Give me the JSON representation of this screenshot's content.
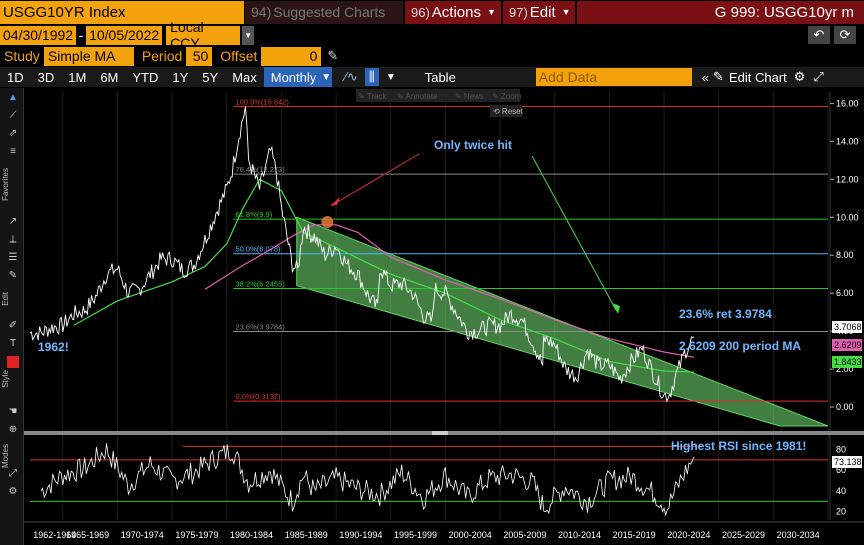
{
  "header": {
    "ticker": "USGG10YR Index",
    "suggested_num": "94)",
    "suggested_label": "Suggested Charts",
    "actions_num": "96)",
    "actions_label": "Actions",
    "edit_num": "97)",
    "edit_label": "Edit",
    "title": "G 999: USGG10yr m"
  },
  "range": {
    "start": "04/30/1992",
    "end": "10/05/2022",
    "currency": "Local CCY"
  },
  "study": {
    "study_label": "Study",
    "study_value": "Simple MA",
    "period_label": "Period",
    "period_value": "50",
    "offset_label": "Offset",
    "offset_value": "0"
  },
  "toolbar": {
    "tabs": [
      "1D",
      "3D",
      "1M",
      "6M",
      "YTD",
      "1Y",
      "5Y",
      "Max"
    ],
    "frequency": "Monthly",
    "table_label": "Table",
    "add_data_placeholder": "Add Data",
    "edit_chart_label": "Edit Chart"
  },
  "chart_controls": {
    "track": "Track",
    "annotate": "Annotate",
    "news": "News",
    "zoom": "Zoom",
    "reset": "Reset"
  },
  "left_labels": {
    "favorites": "Favorites",
    "edit": "Edit",
    "style": "Style",
    "modes": "Modes"
  },
  "fib_levels": [
    {
      "label": "100.0%(15.842)",
      "value": 15.842,
      "color": "#e03030"
    },
    {
      "label": "76.4%(12.273)",
      "value": 12.273,
      "color": "#888888"
    },
    {
      "label": "61.8%(9.9)",
      "value": 9.9,
      "color": "#22cc22"
    },
    {
      "label": "50.0%(8.078)",
      "value": 8.078,
      "color": "#44bbff"
    },
    {
      "label": "38.2%(6.2455)",
      "value": 6.2455,
      "color": "#22cc22"
    },
    {
      "label": "23.6%(3.9784)",
      "value": 3.9784,
      "color": "#888888"
    },
    {
      "label": "0.0%(0.3137)",
      "value": 0.3137,
      "color": "#e03030"
    }
  ],
  "annotations": {
    "only_twice": "Only twice hit",
    "year_1962": "1962!",
    "ret_236": "23.6% ret 3.9784",
    "ma_200": "2.6209 200 period MA",
    "highest_rsi": "Highest RSI since 1981!"
  },
  "value_tags": {
    "last": "3.7068",
    "ma200": "2.6209",
    "ma50": "1.8433",
    "rsi": "73.1384"
  },
  "colors": {
    "price": "#ffffff",
    "ma50": "#44dd44",
    "ma200": "#e060b0",
    "channel": "#5ad65a",
    "annotation": "#6fb8ff",
    "bbg_orange": "#f4a20b"
  },
  "chart_data": {
    "type": "line",
    "y_ticks": [
      "16.00",
      "14.00",
      "12.00",
      "10.00",
      "8.00",
      "6.00",
      "4.00",
      "2.00",
      "0.00"
    ],
    "ylim": [
      -1,
      16.6
    ],
    "rsi_ticks": [
      "80",
      "60",
      "40",
      "20"
    ],
    "rsi_lim": [
      12,
      92
    ],
    "x_labels": [
      "1962-1964",
      "1965-1969",
      "1970-1974",
      "1975-1979",
      "1980-1984",
      "1985-1989",
      "1990-1994",
      "1995-1999",
      "2000-2004",
      "2005-2009",
      "2010-2014",
      "2015-2019",
      "2020-2024",
      "2025-2029",
      "2030-2034"
    ],
    "xlim": [
      1962,
      2035
    ],
    "series": [
      {
        "name": "USGG10YR",
        "x": [
          1962,
          1963,
          1964,
          1965,
          1966,
          1967,
          1968,
          1969,
          1970,
          1971,
          1972,
          1973,
          1974,
          1975,
          1976,
          1977,
          1978,
          1979,
          1980,
          1980.5,
          1981,
          1981.7,
          1982,
          1983,
          1984,
          1984.5,
          1985,
          1986,
          1986.5,
          1987,
          1987.8,
          1988,
          1989,
          1990,
          1991,
          1992,
          1993,
          1993.8,
          1994,
          1995,
          1996,
          1997,
          1998,
          1998.8,
          1999,
          2000,
          2001,
          2002,
          2003,
          2004,
          2005,
          2006,
          2007,
          2008,
          2008.9,
          2009,
          2010,
          2011,
          2012,
          2013,
          2014,
          2015,
          2016,
          2017,
          2018,
          2019,
          2020,
          2020.5,
          2021,
          2022,
          2022.75
        ],
        "y": [
          3.9,
          3.9,
          4.2,
          4.3,
          4.9,
          5.1,
          5.8,
          7.0,
          7.3,
          6.0,
          6.2,
          7.0,
          7.8,
          7.8,
          7.2,
          7.5,
          8.8,
          10.2,
          11.5,
          12.5,
          14.0,
          15.8,
          13.0,
          11.5,
          13.5,
          12.5,
          10.5,
          7.5,
          7.2,
          9.5,
          9.0,
          9.0,
          8.0,
          8.5,
          7.5,
          7.0,
          5.8,
          5.2,
          7.4,
          6.4,
          6.5,
          6.0,
          4.8,
          4.5,
          6.2,
          6.0,
          5.0,
          4.0,
          4.0,
          4.3,
          4.3,
          4.9,
          4.6,
          3.4,
          2.2,
          3.6,
          3.3,
          2.0,
          1.6,
          3.0,
          2.2,
          2.2,
          1.5,
          2.4,
          3.1,
          1.8,
          0.6,
          0.7,
          1.5,
          3.0,
          3.7
        ]
      },
      {
        "name": "MA 50",
        "x": [
          1966,
          1970,
          1975,
          1978,
          1980,
          1981.5,
          1983,
          1985,
          1987,
          1990,
          1995,
          2000,
          2005,
          2010,
          2015,
          2020,
          2022.75
        ],
        "y": [
          4.3,
          5.6,
          6.6,
          7.4,
          8.6,
          10.5,
          12.0,
          11.4,
          9.2,
          8.4,
          7.0,
          6.0,
          4.6,
          3.6,
          2.4,
          1.9,
          1.84
        ]
      },
      {
        "name": "MA 200",
        "x": [
          1978,
          1981,
          1984,
          1986,
          1988,
          1990,
          1992,
          1995,
          2000,
          2005,
          2010,
          2015,
          2020,
          2022.75
        ],
        "y": [
          6.2,
          7.3,
          8.3,
          9.0,
          9.6,
          9.6,
          9.2,
          7.9,
          6.7,
          5.7,
          4.6,
          3.6,
          2.9,
          2.62
        ]
      },
      {
        "name": "RSI",
        "x": [
          1963,
          1965,
          1967,
          1969,
          1971,
          1973,
          1975,
          1977,
          1979,
          1980.5,
          1982,
          1984,
          1986,
          1987,
          1988,
          1990,
          1992,
          1994,
          1996,
          1998,
          2000,
          2002,
          2004,
          2006,
          2008,
          2009,
          2011,
          2013,
          2015,
          2017,
          2019,
          2020.3,
          2021.5,
          2022.75
        ],
        "y": [
          40,
          55,
          62,
          80,
          45,
          66,
          50,
          58,
          72,
          80,
          48,
          60,
          30,
          55,
          40,
          52,
          42,
          36,
          58,
          33,
          55,
          34,
          52,
          56,
          48,
          24,
          44,
          30,
          50,
          54,
          38,
          24,
          50,
          73
        ]
      }
    ]
  }
}
